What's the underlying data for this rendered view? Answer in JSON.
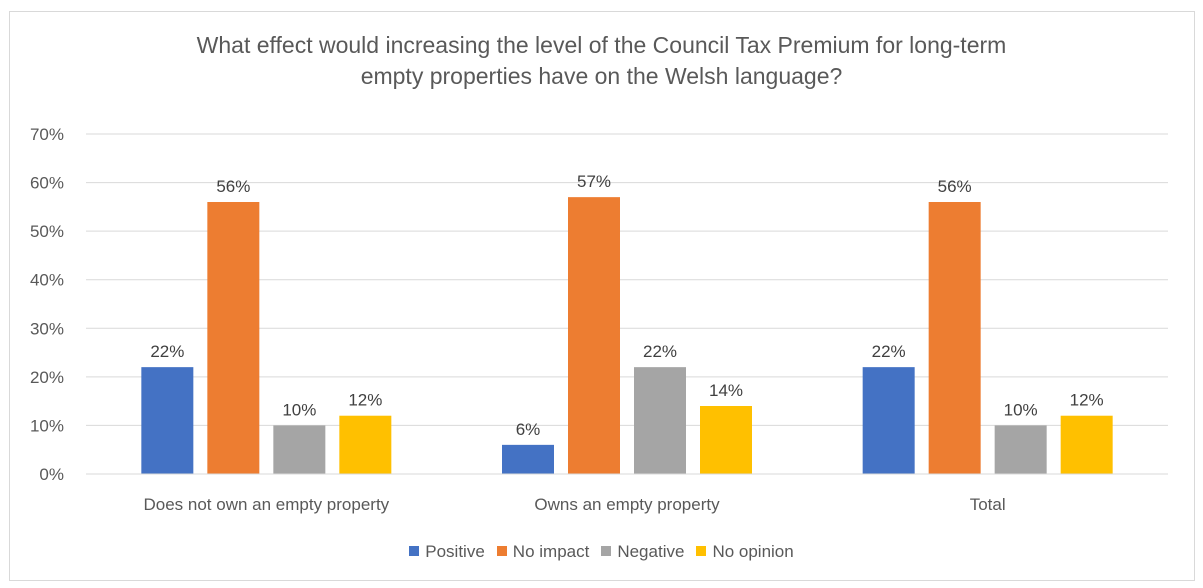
{
  "chart_data": {
    "type": "bar",
    "title_lines": [
      "What effect would increasing the level of the Council Tax Premium for long-term",
      "empty properties have on the Welsh language?"
    ],
    "categories": [
      "Does not own an empty property",
      "Owns an empty property",
      "Total"
    ],
    "series": [
      {
        "name": "Positive",
        "color": "#4472c4",
        "values": [
          22,
          6,
          22
        ],
        "labels": [
          "22%",
          "6%",
          "22%"
        ]
      },
      {
        "name": "No impact",
        "color": "#ed7d31",
        "values": [
          56,
          57,
          56
        ],
        "labels": [
          "56%",
          "57%",
          "56%"
        ]
      },
      {
        "name": "Negative",
        "color": "#a5a5a5",
        "values": [
          10,
          22,
          10
        ],
        "labels": [
          "10%",
          "22%",
          "10%"
        ]
      },
      {
        "name": "No opinion",
        "color": "#ffc000",
        "values": [
          12,
          14,
          12
        ],
        "labels": [
          "12%",
          "14%",
          "12%"
        ]
      }
    ],
    "yticks": [
      "0%",
      "10%",
      "20%",
      "30%",
      "40%",
      "50%",
      "60%",
      "70%"
    ],
    "ylim": [
      0,
      70
    ],
    "grid": true,
    "legend_position": "bottom"
  }
}
